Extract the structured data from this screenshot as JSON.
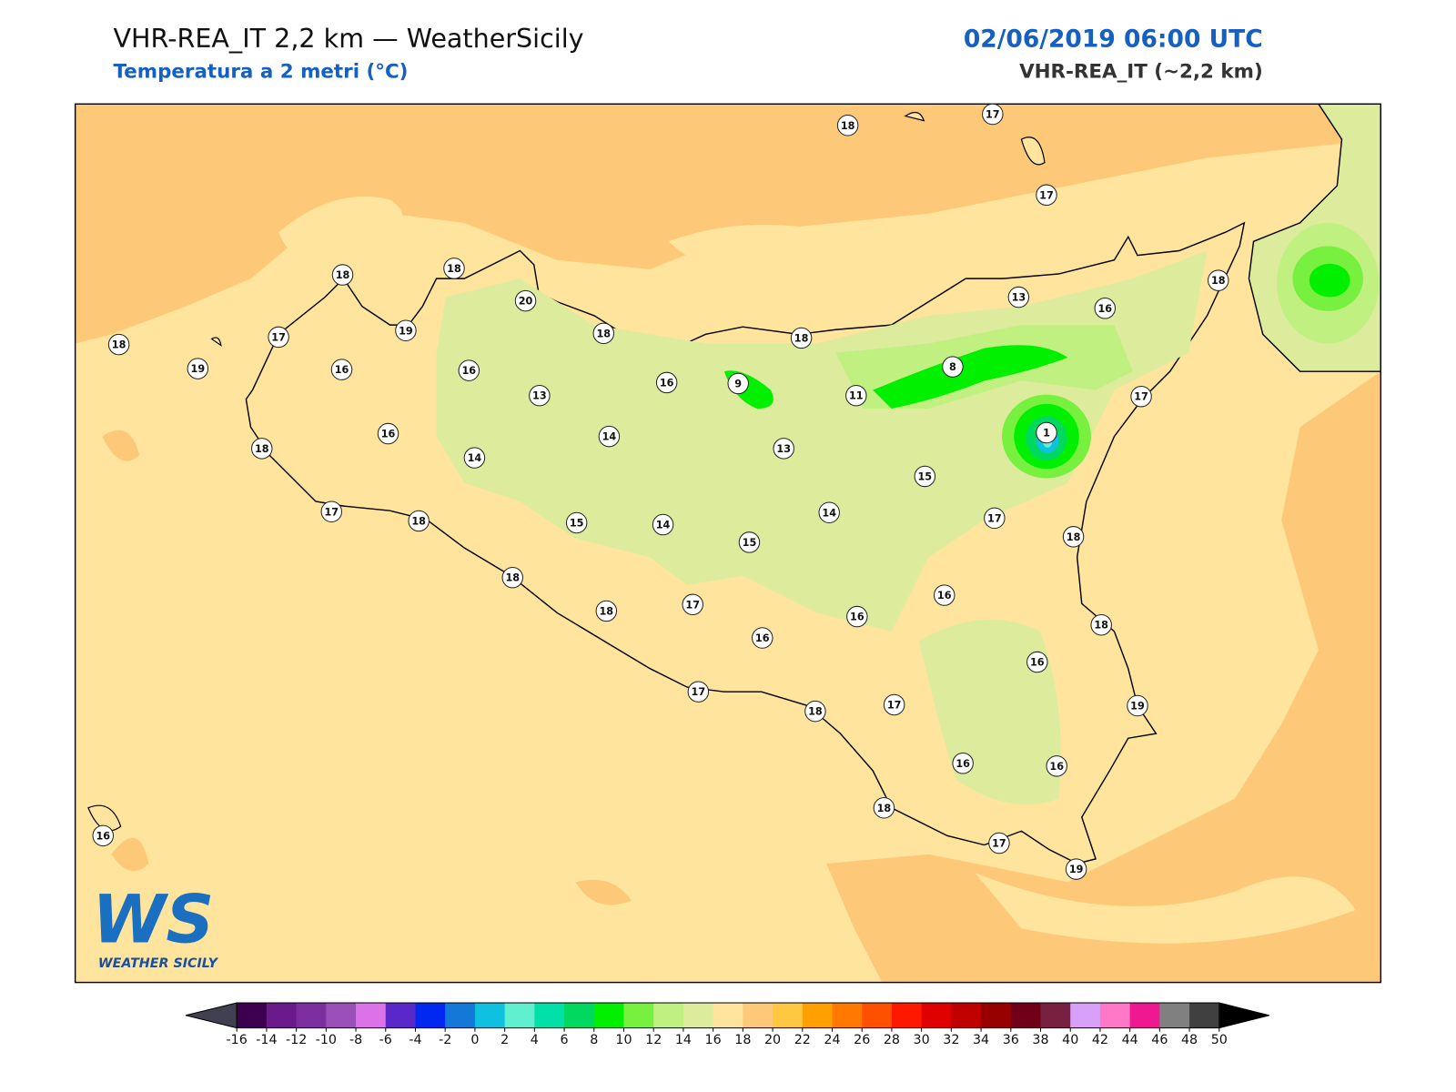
{
  "header": {
    "title": "VHR-REA_IT 2,2 km — WeatherSicily",
    "subtitle": "Temperatura a 2 metri (°C)",
    "datetime": "02/06/2019 06:00 UTC",
    "model": "VHR-REA_IT (~2,2 km)"
  },
  "stations": [
    18,
    17,
    17,
    18,
    18,
    20,
    13,
    16,
    18,
    18,
    17,
    19,
    18,
    18,
    19,
    16,
    16,
    16,
    9,
    8,
    11,
    13,
    17,
    1,
    16,
    14,
    13,
    18,
    14,
    15,
    17,
    18,
    14,
    17,
    15,
    14,
    15,
    18,
    18,
    16,
    17,
    18,
    16,
    16,
    18,
    16,
    17,
    18,
    17,
    19,
    16,
    16,
    18,
    17,
    19,
    16
  ],
  "colorbar": {
    "ticks": [
      -16,
      -14,
      -12,
      -10,
      -8,
      -6,
      -4,
      -2,
      0,
      2,
      4,
      6,
      8,
      10,
      12,
      14,
      16,
      18,
      20,
      22,
      24,
      26,
      28,
      30,
      32,
      34,
      36,
      38,
      40,
      42,
      44,
      46,
      48,
      50
    ],
    "colors": [
      "#3d0050",
      "#6a1a8a",
      "#7d2fa0",
      "#9b4fb8",
      "#dc72e8",
      "#5a28c8",
      "#0028f0",
      "#1478d8",
      "#10c0e0",
      "#60f0d0",
      "#00e0a8",
      "#00d860",
      "#00f000",
      "#78f040",
      "#c0f080",
      "#dcec9c",
      "#fee49c",
      "#fdc878",
      "#ffc840",
      "#ffa000",
      "#ff7800",
      "#ff5000",
      "#ff1800",
      "#e00000",
      "#c00000",
      "#980000",
      "#700018",
      "#782040",
      "#d8a0f8",
      "#ff78c8",
      "#f01890",
      "#808080",
      "#404040"
    ],
    "under_color": "#404050",
    "over_color": "#000000"
  },
  "logo": {
    "mark": "WS",
    "text": "WEATHER SICILY"
  }
}
